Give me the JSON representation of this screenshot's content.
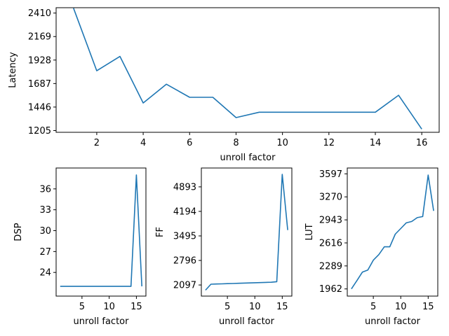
{
  "chart_data": [
    {
      "type": "line",
      "xlabel": "unroll factor",
      "ylabel": "Latency",
      "xlim": [
        0.25,
        16.75
      ],
      "ylim": [
        1187,
        2465
      ],
      "xticks": [
        2,
        4,
        6,
        8,
        10,
        12,
        14,
        16
      ],
      "yticks": [
        1205,
        1446,
        1687,
        1928,
        2169,
        2410
      ],
      "x": [
        1,
        2,
        3,
        4,
        5,
        6,
        7,
        8,
        9,
        10,
        11,
        12,
        13,
        14,
        15,
        16
      ],
      "y": [
        2460,
        1818,
        1965,
        1488,
        1680,
        1546,
        1546,
        1338,
        1393,
        1393,
        1393,
        1393,
        1393,
        1393,
        1567,
        1220
      ]
    },
    {
      "type": "line",
      "xlabel": "unroll factor",
      "ylabel": "DSP",
      "xlim": [
        0.25,
        16.75
      ],
      "ylim": [
        20.6,
        39.0
      ],
      "xticks": [
        5,
        10,
        15
      ],
      "yticks": [
        24,
        27,
        30,
        33,
        36
      ],
      "x": [
        1,
        2,
        3,
        4,
        5,
        6,
        7,
        8,
        9,
        10,
        11,
        12,
        13,
        14,
        15,
        16
      ],
      "y": [
        22,
        22,
        22,
        22,
        22,
        22,
        22,
        22,
        22,
        22,
        22,
        22,
        22,
        22,
        38,
        22
      ]
    },
    {
      "type": "line",
      "xlabel": "unroll factor",
      "ylabel": "FF",
      "xlim": [
        0.25,
        16.75
      ],
      "ylim": [
        1780,
        5430
      ],
      "xticks": [
        5,
        10,
        15
      ],
      "yticks": [
        2097,
        2796,
        3495,
        4194,
        4893
      ],
      "x": [
        1,
        2,
        3,
        4,
        5,
        6,
        7,
        8,
        9,
        10,
        11,
        12,
        13,
        14,
        15,
        16
      ],
      "y": [
        1950,
        2120,
        2125,
        2130,
        2135,
        2140,
        2145,
        2150,
        2155,
        2160,
        2165,
        2170,
        2175,
        2190,
        5250,
        3660
      ]
    },
    {
      "type": "line",
      "xlabel": "unroll factor",
      "ylabel": "LUT",
      "xlim": [
        0.25,
        16.75
      ],
      "ylim": [
        1860,
        3680
      ],
      "xticks": [
        5,
        10,
        15
      ],
      "yticks": [
        1962,
        2289,
        2616,
        2943,
        3270,
        3597
      ],
      "x": [
        1,
        2,
        3,
        4,
        5,
        6,
        7,
        8,
        9,
        10,
        11,
        12,
        13,
        14,
        15,
        16
      ],
      "y": [
        1962,
        2080,
        2200,
        2230,
        2370,
        2450,
        2560,
        2560,
        2740,
        2820,
        2900,
        2920,
        2975,
        2990,
        3580,
        3070
      ]
    }
  ]
}
